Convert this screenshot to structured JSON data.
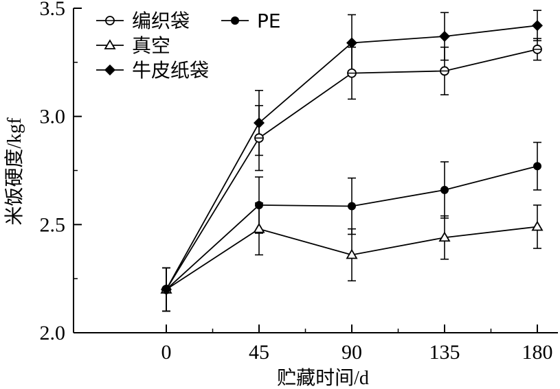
{
  "chart_data": {
    "type": "line",
    "xlabel": "贮藏时间/d",
    "ylabel": "米饭硬度/kgf",
    "x": [
      0,
      45,
      90,
      135,
      180
    ],
    "x_ticks": [
      "0",
      "45",
      "90",
      "135",
      "180"
    ],
    "y_ticks": [
      "2.0",
      "2.5",
      "3.0",
      "3.5"
    ],
    "xlim": [
      -45,
      190
    ],
    "ylim": [
      2.0,
      3.5
    ],
    "grid": false,
    "legend_position": "top-left",
    "series": [
      {
        "name": "编织袋",
        "marker": "circle-cross",
        "values": [
          2.2,
          2.9,
          3.2,
          3.21,
          3.31
        ],
        "errors": [
          0.1,
          0.15,
          0.12,
          0.11,
          0.05
        ]
      },
      {
        "name": "PE",
        "marker": "filled-circle",
        "values": [
          2.2,
          2.59,
          2.585,
          2.66,
          2.77
        ],
        "errors": [
          0.1,
          0.13,
          0.13,
          0.13,
          0.11
        ]
      },
      {
        "name": "真空",
        "marker": "open-triangle",
        "values": [
          2.2,
          2.48,
          2.36,
          2.44,
          2.49
        ],
        "errors": [
          0.1,
          0.12,
          0.12,
          0.1,
          0.1
        ]
      },
      {
        "name": "牛皮纸袋",
        "marker": "filled-diamond",
        "values": [
          2.2,
          2.97,
          3.34,
          3.37,
          3.42
        ],
        "errors": [
          0.1,
          0.15,
          0.13,
          0.11,
          0.07
        ]
      }
    ]
  }
}
